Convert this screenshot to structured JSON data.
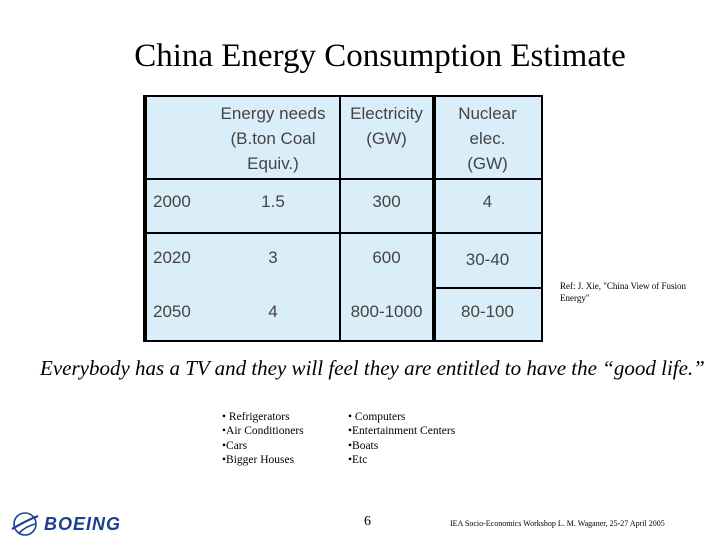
{
  "title": "China Energy Consumption Estimate",
  "table": {
    "headers": [
      "",
      "Energy needs\n(B.ton Coal\nEquiv.)",
      "Electricity\n(GW)",
      "Nuclear\nelec.\n(GW)"
    ],
    "rows": [
      [
        "2000",
        "1.5",
        "300",
        "4"
      ],
      [
        "2020",
        "3",
        "600",
        "30-40"
      ],
      [
        "2050",
        "4",
        "800-1000",
        "80-100"
      ]
    ]
  },
  "reference": "Ref: J. Xie, \"China View of Fusion Energy\"",
  "quote": "Everybody has a TV and they will feel they are entitled to have the “good life.”",
  "list_left": [
    "• Refrigerators",
    "•Air Conditioners",
    "•Cars",
    "•Bigger Houses"
  ],
  "list_right": [
    "• Computers",
    "•Entertainment Centers",
    "•Boats",
    "•Etc"
  ],
  "footer": {
    "page_number": "6",
    "text": "IEA Socio-Economics Workshop  L. M. Waganer, 25-27 April 2005",
    "logo": "BOEING"
  }
}
